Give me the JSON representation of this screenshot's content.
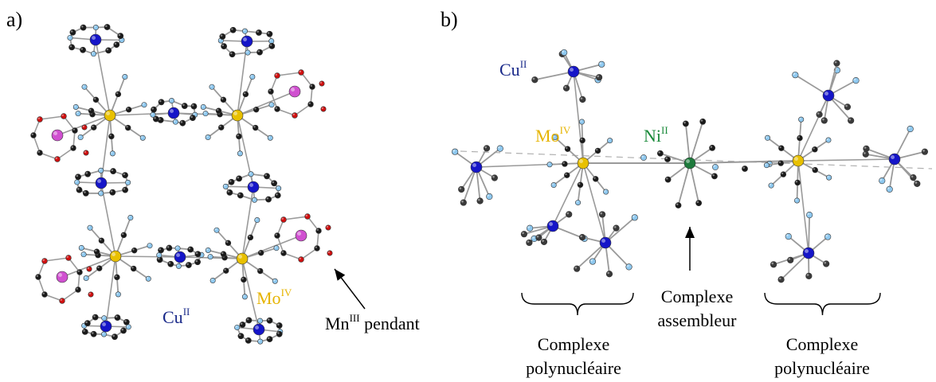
{
  "panel_a": {
    "label": "a)",
    "cu_label": {
      "sym": "Cu",
      "ox": "II"
    },
    "mo_label": {
      "sym": "Mo",
      "ox": "IV"
    },
    "mn_label": {
      "sym": "Mn",
      "ox": "III",
      "suffix": " pendant"
    }
  },
  "panel_b": {
    "label": "b)",
    "cu_label": {
      "sym": "Cu",
      "ox": "II"
    },
    "mo_label": {
      "sym": "Mo",
      "ox": "IV"
    },
    "ni_label": {
      "sym": "Ni",
      "ox": "II"
    },
    "caption_left": {
      "line1": "Complexe",
      "line2": "polynucléaire"
    },
    "caption_mid": {
      "line1": "Complexe",
      "line2": "assembleur"
    },
    "caption_right": {
      "line1": "Complexe",
      "line2": "polynucléaire"
    }
  },
  "colors": {
    "copper": "#1515c8",
    "molybdenum": "#e8c000",
    "manganese": "#d050d0",
    "nickel": "#1e7a3c",
    "nitrogen": "#8ec8ef",
    "carbon": "#1a1a1a",
    "oxygen": "#d01010",
    "bond": "#9a9a9a"
  }
}
